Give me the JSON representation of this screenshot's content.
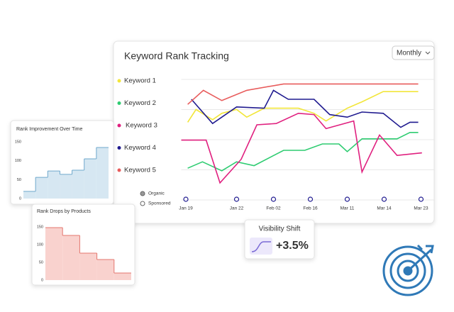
{
  "dropdown": "Monthly",
  "filters": [
    "Organic",
    "Sponsored"
  ],
  "visibility": {
    "title": "Visibility Shift",
    "value": "+3.5%"
  },
  "chart_data": [
    {
      "type": "line",
      "title": "Keyword Rank Tracking",
      "grid": true,
      "xlim": [
        -0.5,
        25.6
      ],
      "ylim": [
        0,
        100
      ],
      "xticks": [
        {
          "value": 0,
          "label": "Jan 19"
        },
        {
          "value": 5.5,
          "label": "Jan 22"
        },
        {
          "value": 9.5,
          "label": "Feb 02"
        },
        {
          "value": 13.5,
          "label": "Feb 16"
        },
        {
          "value": 17.5,
          "label": "Mar 11"
        },
        {
          "value": 21.5,
          "label": "Mar 14"
        },
        {
          "value": 25.5,
          "label": "Mar 23"
        }
      ],
      "series": [
        {
          "name": "Keyword 1",
          "color": "#f2e63a",
          "x": [
            0.2,
            1.1,
            2.9,
            3.9,
            5.5,
            6.6,
            8.5,
            12.2,
            13.9,
            15.2,
            17.5,
            19.1,
            21.4,
            25.2
          ],
          "values": [
            57,
            67,
            59,
            64,
            67,
            61,
            68,
            68,
            64,
            58,
            68,
            73,
            81,
            81
          ]
        },
        {
          "name": "Keyword 2",
          "color": "#2ecc71",
          "x": [
            0.2,
            1.8,
            3.9,
            5.5,
            7.4,
            10.6,
            12.9,
            14.8,
            16.6,
            17.5,
            19.1,
            22.9,
            24.3,
            25.2
          ],
          "values": [
            21,
            26,
            19,
            26,
            23,
            35,
            35,
            40,
            40,
            34,
            44,
            44,
            49,
            49
          ]
        },
        {
          "name": "Keyword 3",
          "color": "#e0207f",
          "x": [
            -0.5,
            2.2,
            3.7,
            6,
            7.7,
            9.8,
            12.2,
            13.9,
            15.2,
            18.2,
            19.1,
            21,
            22.9,
            25.6
          ],
          "values": [
            43,
            43,
            9.5,
            28,
            55,
            56,
            64,
            63,
            52,
            58,
            18,
            47,
            31,
            33
          ]
        },
        {
          "name": "Keyword 4",
          "color": "#1f1a8f",
          "x": [
            0.6,
            2.9,
            5.5,
            8.5,
            9.5,
            11.1,
            13.9,
            15.6,
            17.5,
            19.1,
            21.4,
            23.3,
            24.3,
            25.2
          ],
          "values": [
            75,
            56,
            69,
            68,
            82,
            75,
            75,
            63,
            61,
            65,
            64,
            53,
            57,
            57
          ]
        },
        {
          "name": "Keyword 5",
          "color": "#e85c5c",
          "x": [
            0.2,
            1.9,
            3.9,
            6.6,
            10.6,
            14.8,
            25.2
          ],
          "values": [
            71,
            82,
            74,
            82,
            87,
            87,
            87
          ]
        }
      ]
    },
    {
      "type": "step",
      "title": "Rank Improvement Over Time",
      "color": "#6fa8cc",
      "fill": "#d6e7f2",
      "ylim": [
        0,
        160
      ],
      "yticks": [
        0,
        50,
        100,
        150
      ],
      "values": [
        19,
        56,
        73,
        64,
        75,
        105,
        135
      ]
    },
    {
      "type": "step",
      "title": "Rank Drops by Products",
      "color": "#e4776f",
      "fill": "#f9d2ce",
      "ylim": [
        0,
        160
      ],
      "yticks": [
        0,
        50,
        100,
        150
      ],
      "values": [
        148,
        126,
        76,
        58,
        20
      ]
    }
  ]
}
